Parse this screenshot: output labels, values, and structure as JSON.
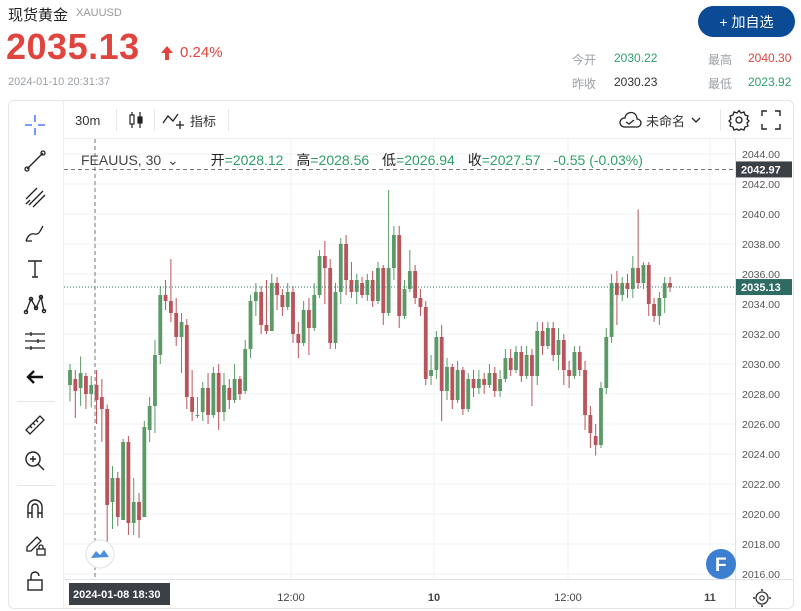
{
  "header": {
    "name": "现货黄金",
    "code": "XAUUSD",
    "price": "2035.13",
    "change_pct": "0.24%",
    "timestamp": "2024-01-10 20:31:37",
    "add_button": "+ 加自选",
    "quote": {
      "open_label": "今开",
      "open_value": "2030.22",
      "high_label": "最高",
      "high_value": "2040.30",
      "prev_label": "昨收",
      "prev_value": "2030.23",
      "low_label": "最低",
      "low_value": "2023.92"
    }
  },
  "toolbar": {
    "interval": "30m",
    "indicators_label": "指标",
    "layout_name": "未命名"
  },
  "legend": {
    "symbol": "FEAUUS, 30",
    "open_label": "开",
    "open": "2028.12",
    "high_label": "高",
    "high": "2028.56",
    "low_label": "低",
    "low": "2026.94",
    "close_label": "收",
    "close": "2027.57",
    "change": "-0.55 (-0.03%)"
  },
  "colors": {
    "up": "#5b9a67",
    "down": "#b9545a",
    "accent": "#e0443e",
    "brand": "#0b4a94"
  },
  "icons": [
    "crosshair-icon",
    "trend-line-icon",
    "fib-icon",
    "brush-icon",
    "text-icon",
    "pattern-icon",
    "measure-icon",
    "back-arrow-icon",
    "ruler-icon",
    "zoom-in-icon",
    "magnet-icon",
    "lock-draw-icon",
    "lock-icon",
    "candle-type-icon",
    "cloud-icon",
    "settings-icon",
    "fullscreen-icon"
  ],
  "chart_data": {
    "type": "candlestick",
    "ylim": [
      2015,
      2044
    ],
    "y_ticks": [
      2016,
      2018,
      2020,
      2022,
      2024,
      2026,
      2028,
      2030,
      2032,
      2034,
      2036,
      2038,
      2040,
      2042,
      2044
    ],
    "x_labels": [
      "12:00",
      "10",
      "12:00",
      "11"
    ],
    "crosshair_date": "2024-01-08",
    "crosshair_time": "18:30",
    "crosshair_price": "2042.97",
    "last_price": "2035.13",
    "candles": [
      [
        2028.6,
        2029.6,
        2030.0,
        2027.5
      ],
      [
        2029.0,
        2028.2,
        2029.6,
        2026.4
      ],
      [
        2028.4,
        2029.4,
        2030.5,
        2027.2
      ],
      [
        2029.2,
        2028.0,
        2029.4,
        2027.0
      ],
      [
        2028.0,
        2028.6,
        2029.2,
        2027.1
      ],
      [
        2028.6,
        2027.6,
        2029.6,
        2026.0
      ],
      [
        2027.8,
        2027.0,
        2029.0,
        2024.8
      ],
      [
        2027.0,
        2020.6,
        2027.3,
        2017.2
      ],
      [
        2020.8,
        2022.4,
        2023.2,
        2019.0
      ],
      [
        2022.4,
        2019.8,
        2022.8,
        2019.2
      ],
      [
        2019.6,
        2024.8,
        2025.0,
        2019.6
      ],
      [
        2024.8,
        2019.4,
        2025.2,
        2018.6
      ],
      [
        2019.4,
        2020.8,
        2022.4,
        2018.6
      ],
      [
        2020.8,
        2019.6,
        2021.4,
        2018.4
      ],
      [
        2019.8,
        2025.8,
        2026.2,
        2019.8
      ],
      [
        2025.6,
        2027.2,
        2027.8,
        2024.8
      ],
      [
        2027.2,
        2030.6,
        2031.6,
        2025.4
      ],
      [
        2030.6,
        2034.6,
        2035.2,
        2030.0
      ],
      [
        2034.6,
        2034.2,
        2035.6,
        2033.6
      ],
      [
        2034.2,
        2033.4,
        2037.0,
        2032.8
      ],
      [
        2033.4,
        2031.8,
        2034.4,
        2031.2
      ],
      [
        2031.8,
        2032.8,
        2033.4,
        2029.4
      ],
      [
        2032.6,
        2027.8,
        2033.0,
        2027.0
      ],
      [
        2027.8,
        2026.8,
        2029.6,
        2026.2
      ],
      [
        2026.6,
        2026.6,
        2027.8,
        2026.4
      ],
      [
        2026.8,
        2028.4,
        2028.8,
        2026.2
      ],
      [
        2028.4,
        2026.6,
        2029.4,
        2026.0
      ],
      [
        2026.6,
        2029.4,
        2029.8,
        2026.4
      ],
      [
        2029.4,
        2026.8,
        2030.0,
        2025.6
      ],
      [
        2026.8,
        2028.6,
        2029.4,
        2026.2
      ],
      [
        2028.4,
        2027.6,
        2029.0,
        2027.0
      ],
      [
        2027.6,
        2029.0,
        2030.0,
        2027.4
      ],
      [
        2029.0,
        2028.0,
        2029.2,
        2027.6
      ],
      [
        2028.2,
        2031.0,
        2031.6,
        2028.0
      ],
      [
        2031.0,
        2034.2,
        2034.6,
        2030.4
      ],
      [
        2034.2,
        2034.8,
        2035.4,
        2033.2
      ],
      [
        2034.8,
        2032.6,
        2035.2,
        2032.0
      ],
      [
        2032.6,
        2032.2,
        2035.6,
        2032.0
      ],
      [
        2032.2,
        2035.4,
        2036.0,
        2032.2
      ],
      [
        2035.4,
        2034.6,
        2035.8,
        2033.6
      ],
      [
        2034.6,
        2033.8,
        2035.0,
        2033.2
      ],
      [
        2033.8,
        2034.8,
        2035.4,
        2033.6
      ],
      [
        2034.8,
        2032.0,
        2035.2,
        2031.4
      ],
      [
        2032.0,
        2031.4,
        2032.8,
        2030.4
      ],
      [
        2031.4,
        2033.6,
        2034.2,
        2031.2
      ],
      [
        2033.6,
        2032.4,
        2034.4,
        2030.6
      ],
      [
        2032.4,
        2034.6,
        2035.4,
        2032.2
      ],
      [
        2034.6,
        2037.2,
        2037.6,
        2034.4
      ],
      [
        2037.2,
        2036.4,
        2038.2,
        2034.0
      ],
      [
        2036.4,
        2031.4,
        2037.0,
        2031.0
      ],
      [
        2031.4,
        2034.8,
        2035.4,
        2031.0
      ],
      [
        2034.8,
        2038.0,
        2038.4,
        2034.0
      ],
      [
        2038.0,
        2035.6,
        2038.6,
        2034.6
      ],
      [
        2035.6,
        2034.8,
        2036.8,
        2034.4
      ],
      [
        2034.8,
        2035.6,
        2036.0,
        2034.0
      ],
      [
        2035.4,
        2034.6,
        2035.8,
        2034.4
      ],
      [
        2034.6,
        2035.6,
        2036.0,
        2034.2
      ],
      [
        2035.6,
        2034.2,
        2036.2,
        2033.8
      ],
      [
        2034.2,
        2036.4,
        2036.8,
        2034.0
      ],
      [
        2036.4,
        2033.4,
        2036.6,
        2032.6
      ],
      [
        2033.4,
        2036.4,
        2041.6,
        2033.2
      ],
      [
        2036.4,
        2038.6,
        2039.2,
        2035.6
      ],
      [
        2038.6,
        2033.2,
        2039.2,
        2032.4
      ],
      [
        2033.2,
        2035.0,
        2035.6,
        2033.0
      ],
      [
        2035.0,
        2036.2,
        2037.6,
        2034.8
      ],
      [
        2036.2,
        2034.4,
        2036.6,
        2034.0
      ],
      [
        2034.4,
        2033.8,
        2035.0,
        2033.2
      ],
      [
        2033.8,
        2029.0,
        2034.2,
        2028.6
      ],
      [
        2029.2,
        2029.6,
        2030.6,
        2028.6
      ],
      [
        2029.6,
        2031.8,
        2032.2,
        2029.0
      ],
      [
        2031.8,
        2028.2,
        2032.6,
        2026.2
      ],
      [
        2028.2,
        2029.8,
        2030.4,
        2027.6
      ],
      [
        2029.8,
        2027.6,
        2030.0,
        2027.0
      ],
      [
        2027.6,
        2029.6,
        2030.2,
        2027.4
      ],
      [
        2029.6,
        2027.0,
        2029.8,
        2026.6
      ],
      [
        2027.0,
        2029.0,
        2029.4,
        2026.8
      ],
      [
        2029.0,
        2028.4,
        2029.6,
        2027.8
      ],
      [
        2028.4,
        2029.0,
        2029.6,
        2028.0
      ],
      [
        2029.0,
        2028.6,
        2029.4,
        2028.0
      ],
      [
        2028.6,
        2029.4,
        2030.0,
        2028.4
      ],
      [
        2029.4,
        2028.2,
        2029.8,
        2027.8
      ],
      [
        2028.2,
        2029.0,
        2029.6,
        2027.8
      ],
      [
        2029.0,
        2030.4,
        2031.0,
        2028.8
      ],
      [
        2030.4,
        2029.6,
        2031.0,
        2029.2
      ],
      [
        2029.6,
        2030.8,
        2031.2,
        2029.4
      ],
      [
        2030.8,
        2029.2,
        2031.2,
        2028.8
      ],
      [
        2029.2,
        2030.6,
        2031.2,
        2029.0
      ],
      [
        2030.6,
        2029.2,
        2031.0,
        2027.2
      ],
      [
        2029.2,
        2032.2,
        2032.8,
        2028.6
      ],
      [
        2032.2,
        2031.2,
        2032.8,
        2030.6
      ],
      [
        2031.2,
        2032.4,
        2032.8,
        2031.0
      ],
      [
        2032.4,
        2030.6,
        2032.8,
        2030.2
      ],
      [
        2030.6,
        2031.6,
        2032.4,
        2029.6
      ],
      [
        2031.6,
        2029.6,
        2032.0,
        2028.6
      ],
      [
        2029.6,
        2029.2,
        2030.2,
        2028.4
      ],
      [
        2029.2,
        2030.8,
        2031.2,
        2029.0
      ],
      [
        2030.8,
        2029.6,
        2031.2,
        2029.2
      ],
      [
        2029.6,
        2026.6,
        2030.2,
        2025.6
      ],
      [
        2026.6,
        2025.4,
        2027.2,
        2024.4
      ],
      [
        2025.2,
        2024.6,
        2026.0,
        2023.9
      ],
      [
        2024.6,
        2028.4,
        2028.8,
        2024.4
      ],
      [
        2028.4,
        2031.8,
        2032.4,
        2028.0
      ],
      [
        2031.8,
        2035.4,
        2036.0,
        2031.4
      ],
      [
        2035.4,
        2034.6,
        2036.2,
        2032.6
      ],
      [
        2034.6,
        2035.4,
        2035.8,
        2034.2
      ],
      [
        2035.4,
        2035.0,
        2036.0,
        2034.4
      ],
      [
        2035.0,
        2036.4,
        2037.2,
        2034.4
      ],
      [
        2036.4,
        2035.4,
        2040.3,
        2035.0
      ],
      [
        2035.4,
        2036.6,
        2036.8,
        2035.0
      ],
      [
        2036.6,
        2034.0,
        2036.8,
        2033.2
      ],
      [
        2034.0,
        2033.2,
        2034.4,
        2032.8
      ],
      [
        2033.2,
        2034.4,
        2034.8,
        2032.6
      ],
      [
        2034.4,
        2035.4,
        2035.8,
        2033.4
      ],
      [
        2035.4,
        2035.1,
        2035.8,
        2034.8
      ]
    ]
  }
}
